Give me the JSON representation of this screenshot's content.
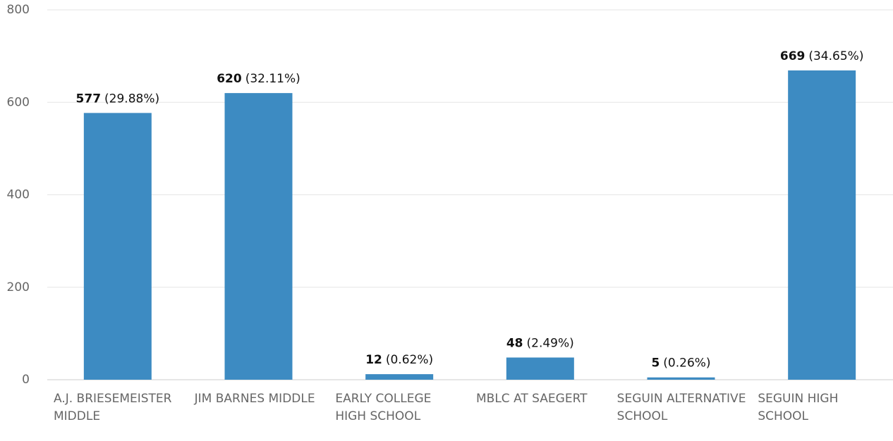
{
  "chart_data": {
    "type": "bar",
    "categories": [
      "A.J. BRIESEMEISTER MIDDLE",
      "JIM BARNES MIDDLE",
      "EARLY COLLEGE HIGH SCHOOL",
      "MBLC AT SAEGERT",
      "SEGUIN ALTERNATIVE SCHOOL",
      "SEGUIN HIGH SCHOOL"
    ],
    "values": [
      577,
      620,
      12,
      48,
      5,
      669
    ],
    "share_labels": [
      "(29.88%)",
      "(32.11%)",
      "(0.62%)",
      "(2.49%)",
      "(0.26%)",
      "(34.65%)"
    ],
    "color": "#3d8bc2",
    "ylim": [
      0,
      800
    ],
    "yticks": [
      0,
      200,
      400,
      600,
      800
    ],
    "grid": true
  }
}
